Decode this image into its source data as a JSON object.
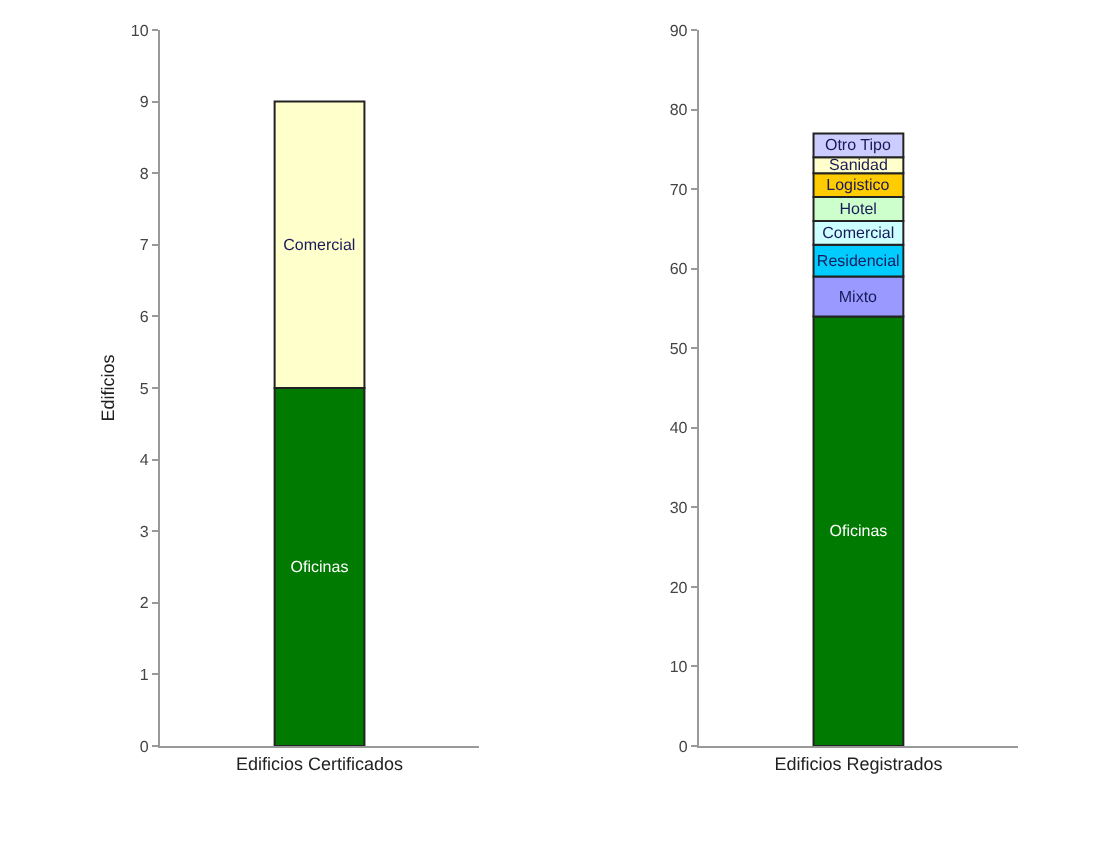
{
  "chart_data": [
    {
      "type": "bar",
      "stacked": true,
      "ylabel": "Edificios",
      "categories": [
        "Edificios Certificados"
      ],
      "ylim": [
        0,
        10
      ],
      "yticks": [
        0,
        1,
        2,
        3,
        4,
        5,
        6,
        7,
        8,
        9,
        10
      ],
      "grid": false,
      "legend": false,
      "series": [
        {
          "name": "Oficinas",
          "color": "#007a00",
          "values": [
            5
          ]
        },
        {
          "name": "Comercial",
          "color": "#ffffcc",
          "values": [
            4
          ]
        }
      ]
    },
    {
      "type": "bar",
      "stacked": true,
      "categories": [
        "Edificios Registrados"
      ],
      "ylim": [
        0,
        90
      ],
      "yticks": [
        0,
        10,
        20,
        30,
        40,
        50,
        60,
        70,
        80,
        90
      ],
      "grid": false,
      "legend": false,
      "series": [
        {
          "name": "Oficinas",
          "color": "#007a00",
          "values": [
            54
          ]
        },
        {
          "name": "Mixto",
          "color": "#9999ff",
          "values": [
            5
          ]
        },
        {
          "name": "Residencial",
          "color": "#00ccff",
          "values": [
            4
          ]
        },
        {
          "name": "Comercial",
          "color": "#ccffff",
          "values": [
            3
          ]
        },
        {
          "name": "Hotel",
          "color": "#ccffcc",
          "values": [
            3
          ]
        },
        {
          "name": "Logistico",
          "color": "#ffcc00",
          "values": [
            3
          ]
        },
        {
          "name": "Sanidad",
          "color": "#ffffcc",
          "values": [
            2
          ]
        },
        {
          "name": "Otro Tipo",
          "color": "#ccccff",
          "values": [
            3
          ]
        }
      ]
    }
  ]
}
